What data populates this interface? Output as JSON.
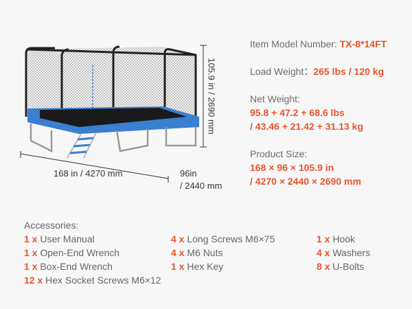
{
  "specs": {
    "model_label": "Item Model Number: ",
    "model_value": "TX-8*14FT",
    "load_label": "Load Weight：",
    "load_value": "265 lbs / 120 kg",
    "net_label": "Net Weight:",
    "net_line1": "95.8 + 47.2 + 68.6 lbs",
    "net_line2": "/ 43.46 + 21.42 + 31.13 kg",
    "size_label": "Product Size:",
    "size_line1": "168 × 96 × 105.9 in",
    "size_line2": "/ 4270 × 2440 × 2690 mm"
  },
  "dimensions": {
    "length": "168 in / 4270 mm",
    "width_line1": "96in",
    "width_line2": "/ 2440 mm",
    "height": "105.9 in / 2690 mm"
  },
  "accessories": {
    "title": "Accessories:",
    "items": [
      {
        "qty": "1 x",
        "name": " User Manual"
      },
      {
        "qty": "1 x",
        "name": " Open-End Wrench"
      },
      {
        "qty": "1 x",
        "name": " Box-End Wrench"
      },
      {
        "qty": "12 x",
        "name": " Hex Socket Screws M6×12"
      },
      {
        "qty": "4 x",
        "name": " Long Screws M6×75"
      },
      {
        "qty": "4 x",
        "name": " M6 Nuts"
      },
      {
        "qty": "1 x",
        "name": " Hex Key"
      },
      {
        "qty": "1 x",
        "name": " Hook"
      },
      {
        "qty": "4 x",
        "name": " Washers"
      },
      {
        "qty": "8 x",
        "name": " U-Bolts"
      }
    ]
  },
  "colors": {
    "accent": "#e8542c",
    "mat_blue": "#3a7fd0",
    "background": "#f7f7f7"
  }
}
